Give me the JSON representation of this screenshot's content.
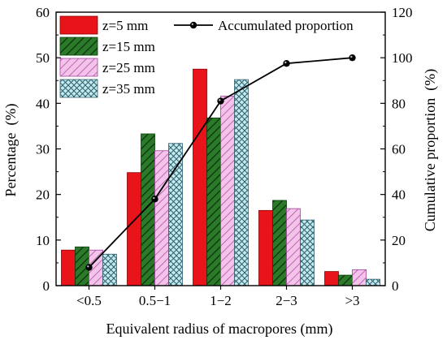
{
  "chart_data": {
    "type": "bar",
    "categories": [
      "<0.5",
      "0.5−1",
      "1−2",
      "2−3",
      ">3"
    ],
    "series": [
      {
        "name": "z=5 mm",
        "values": [
          7.8,
          24.8,
          47.5,
          16.5,
          3.1
        ],
        "pattern": "solid",
        "color": "#e8141a",
        "edge": "#8b0000"
      },
      {
        "name": "z=15 mm",
        "values": [
          8.5,
          33.3,
          36.8,
          18.7,
          2.3
        ],
        "pattern": "hatch",
        "color": "#2a7a2a",
        "edge": "#0b3d0b"
      },
      {
        "name": "z=25 mm",
        "values": [
          7.8,
          29.6,
          41.6,
          16.9,
          3.5
        ],
        "pattern": "hatch",
        "color": "#f4c3ea",
        "edge": "#a0449a"
      },
      {
        "name": "z=35 mm",
        "values": [
          6.9,
          31.2,
          45.2,
          14.4,
          1.4
        ],
        "pattern": "cross",
        "color": "#c2eaf0",
        "edge": "#2f5f6a"
      }
    ],
    "line": {
      "name": "Accumulated proportion",
      "values": [
        8,
        38,
        81,
        97.5,
        100
      ],
      "axis": "right",
      "color": "#000000"
    },
    "xlabel": "Equivalent radius of macropores (mm)",
    "ylabel": "Percentage  (%)",
    "y2label": "Cumulative proportion  (%)",
    "ylim": [
      0,
      60
    ],
    "y2lim": [
      0,
      120
    ],
    "yticks": [
      "0",
      "10",
      "20",
      "30",
      "40",
      "50",
      "60"
    ],
    "y2ticks": [
      "0",
      "20",
      "40",
      "60",
      "80",
      "100",
      "120"
    ],
    "grid": false,
    "legend_position": "top"
  }
}
